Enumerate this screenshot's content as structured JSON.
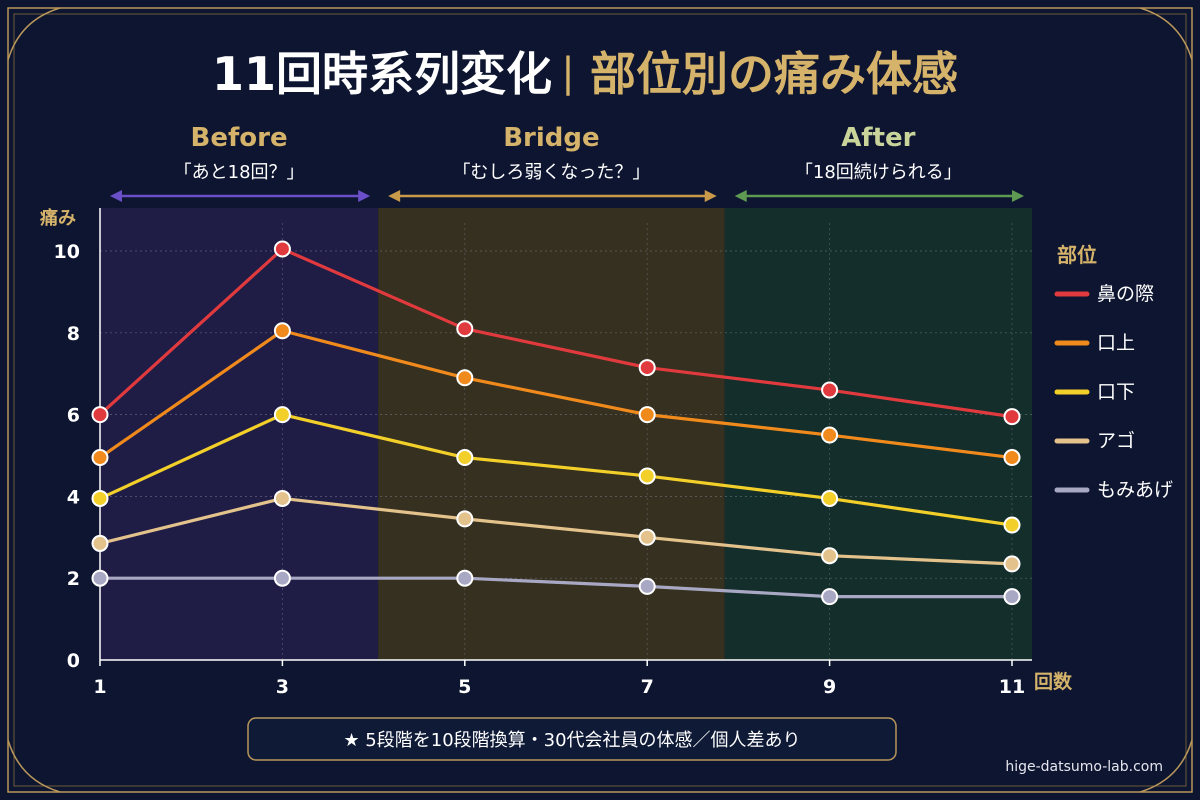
{
  "header": {
    "title_main": "11回時系列変化",
    "title_sep": "|",
    "title_sub": "部位別の痛み体感"
  },
  "phases": [
    {
      "name": "Before",
      "quote": "「あと18回？」",
      "x_start": 1,
      "x_end": 4.05,
      "band_color": "#1f1d45",
      "accent": "#6a4fc8",
      "title_color": "#d6b36a"
    },
    {
      "name": "Bridge",
      "quote": "「むしろ弱くなった？」",
      "x_start": 4.05,
      "x_end": 7.85,
      "band_color": "#35301f",
      "accent": "#c89a4a",
      "title_color": "#d6b36a"
    },
    {
      "name": "After",
      "quote": "「18回続けられる」",
      "x_start": 7.85,
      "x_end": 11.3,
      "band_color": "#142e2b",
      "accent": "#5e9a52",
      "title_color": "#c9d49a"
    }
  ],
  "legend": {
    "title": "部位",
    "position": "right"
  },
  "footnote": "★ 5段階を10段階換算・30代会社員の体感／個人差あり",
  "site": "hige-datsumo-lab.com",
  "colors": {
    "background": "#0d1530",
    "frame": "#b8975a",
    "title_white": "#ffffff",
    "title_gold": "#d6b36a",
    "axis_label": "#d6b36a"
  },
  "chart_data": {
    "type": "line",
    "title": "11回時系列変化 | 部位別の痛み体感",
    "xlabel": "回数",
    "ylabel": "痛み",
    "x": [
      1,
      3,
      5,
      7,
      9,
      11
    ],
    "xlim": [
      1,
      11.3
    ],
    "ylim": [
      0,
      10.6
    ],
    "xticks": [
      1,
      3,
      5,
      7,
      9,
      11
    ],
    "yticks": [
      0,
      2,
      4,
      6,
      8,
      10
    ],
    "grid": true,
    "series": [
      {
        "name": "鼻の際",
        "color": "#e03a3e",
        "values": [
          6.0,
          10.05,
          8.1,
          7.15,
          6.6,
          5.95
        ]
      },
      {
        "name": "口上",
        "color": "#f08a1c",
        "values": [
          4.95,
          8.05,
          6.9,
          6.0,
          5.5,
          4.95
        ]
      },
      {
        "name": "口下",
        "color": "#f3cf2a",
        "values": [
          3.95,
          6.0,
          4.95,
          4.5,
          3.95,
          3.3
        ]
      },
      {
        "name": "アゴ",
        "color": "#e3c28c",
        "values": [
          2.85,
          3.95,
          3.45,
          3.0,
          2.55,
          2.35
        ]
      },
      {
        "name": "もみあげ",
        "color": "#a9a8c4",
        "values": [
          2.0,
          2.0,
          2.0,
          1.8,
          1.55,
          1.55
        ]
      }
    ]
  }
}
